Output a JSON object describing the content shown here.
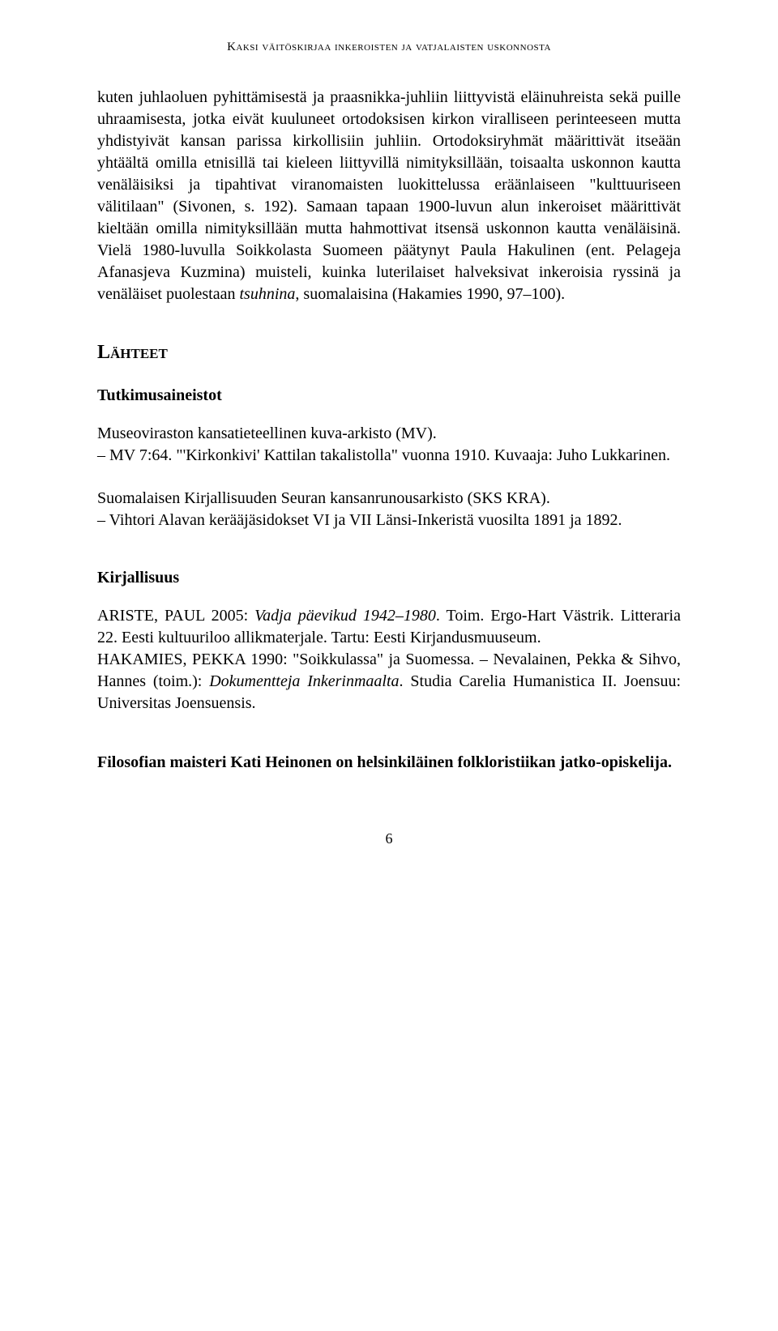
{
  "running_header": "Kaksi väitöskirjaa inkeroisten ja vatjalaisten uskonnosta",
  "paragraph_1": "kuten juhlaoluen pyhittämisestä ja praasnikka-juhliin liittyvistä eläinuhreista sekä puille uhraamisesta, jotka eivät kuuluneet ortodoksisen kirkon viralliseen perinteeseen mutta yhdistyivät kansan parissa kirkollisiin juhliin. Ortodoksiryhmät määrittivät itseään yhtäältä omilla etnisillä tai kieleen liittyvillä nimityksillään, toisaalta uskonnon kautta venäläisiksi ja tipahtivat viranomaisten luokittelussa eräänlaiseen \"kulttuuriseen välitilaan\" (Sivonen, s. 192). Samaan tapaan 1900-luvun alun inkeroiset määrittivät kieltään omilla nimityksillään mutta hahmottivat itsensä uskonnon kautta venäläisinä. Vielä 1980-luvulla Soikkolasta Suomeen päätynyt Paula Hakulinen (ent. Pelageja Afanasjeva Kuzmina) muisteli, kuinka luterilaiset halveksivat inkeroisia ryssinä ja venäläiset puolestaan ",
  "paragraph_1_italic": "tsuhnina",
  "paragraph_1_end": ", suomalaisina (Hakamies 1990, 97–100).",
  "section_lahteet": "Lähteet",
  "subsection_tutkimusaineistot": "Tutkimusaineistot",
  "ref_museo_1": "Museoviraston kansatieteellinen kuva-arkisto (MV).",
  "ref_museo_2": "– MV 7:64. \"'Kirkonkivi' Kattilan takalistolla\" vuonna 1910. Kuvaaja: Juho Lukkarinen.",
  "ref_sks_1": "Suomalaisen Kirjallisuuden Seuran kansanrunousarkisto (SKS KRA).",
  "ref_sks_2": "– Vihtori Alavan kerääjäsidokset VI ja VII Länsi-Inkeristä vuosilta 1891 ja 1892.",
  "subsection_kirjallisuus": "Kirjallisuus",
  "ref_ariste_author": "ARISTE, PAUL 2005: ",
  "ref_ariste_title": "Vadja päevikud 1942–1980",
  "ref_ariste_rest": ". Toim. Ergo-Hart Västrik. Litteraria 22. Eesti kultuuriloo allikmaterjale. Tartu: Eesti Kirjandusmuuseum.",
  "ref_hakamies_author": "HAKAMIES, PEKKA 1990: \"Soikkulassa\" ja Suomessa. – Nevalainen, Pekka & Sihvo, Hannes (toim.): ",
  "ref_hakamies_title": "Dokumentteja Inkerinmaalta",
  "ref_hakamies_rest": ". Studia Carelia Humanistica II. Joensuu: Universitas Joensuensis.",
  "author_note": "Filosofian maisteri Kati Heinonen on helsinkiläinen folkloristiikan jatko-opiskelija.",
  "page_number": "6"
}
